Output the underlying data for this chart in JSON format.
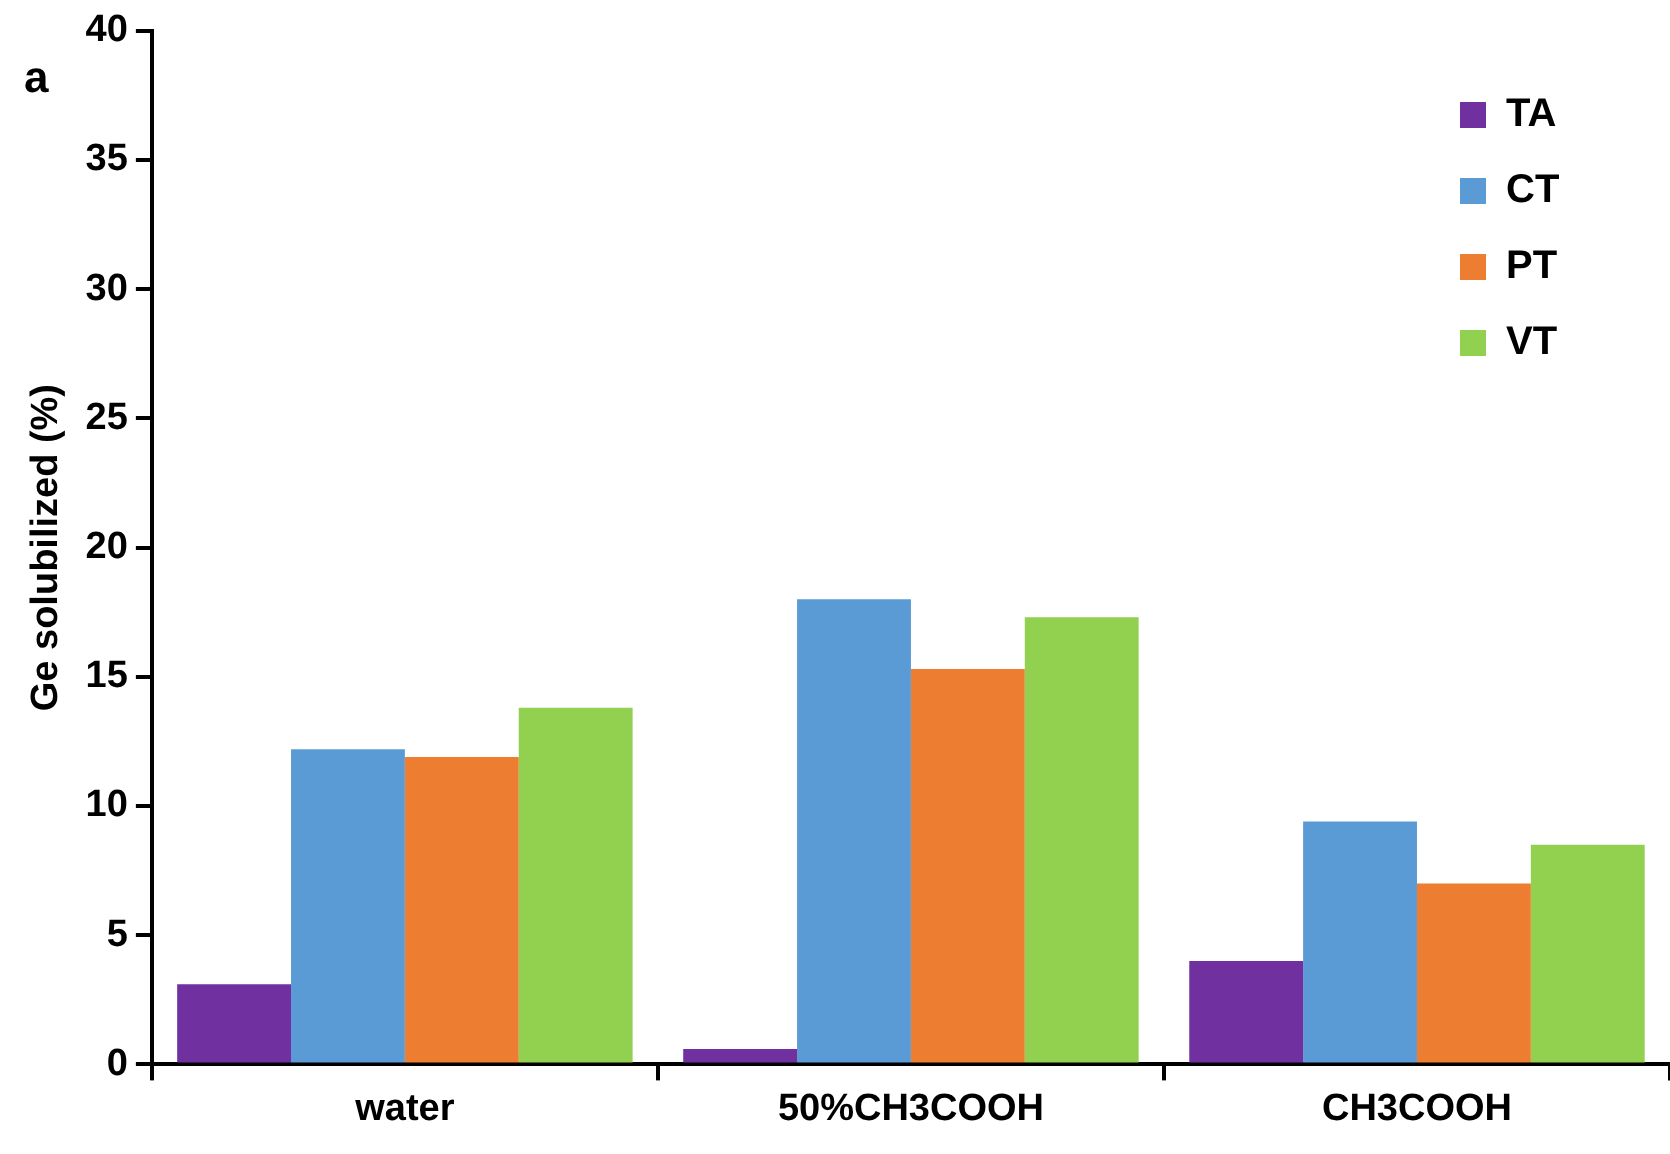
{
  "chart_data": {
    "type": "bar",
    "ylabel": "Ge solubilized (%)",
    "annotations": [
      "a"
    ],
    "categories": [
      "water",
      "50%CH3COOH",
      "CH3COOH"
    ],
    "series": [
      {
        "name": "TA",
        "color": "#7030a0",
        "values": [
          3.1,
          0.6,
          4.0
        ]
      },
      {
        "name": "CT",
        "color": "#5b9bd5",
        "values": [
          12.2,
          18.0,
          9.4
        ]
      },
      {
        "name": "PT",
        "color": "#ed7d31",
        "values": [
          11.9,
          15.3,
          7.0
        ]
      },
      {
        "name": "VT",
        "color": "#92d050",
        "values": [
          13.8,
          17.3,
          8.5
        ]
      }
    ],
    "ylim": [
      0,
      40
    ],
    "yticks": [
      0,
      5,
      10,
      15,
      20,
      25,
      30,
      35,
      40
    ],
    "grid": false,
    "legend": "top right"
  }
}
